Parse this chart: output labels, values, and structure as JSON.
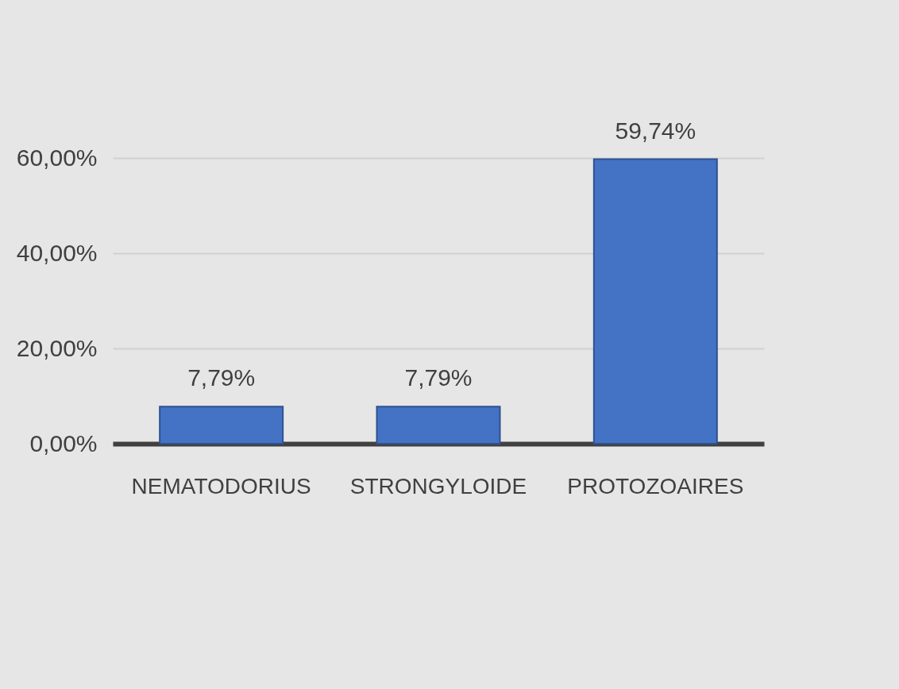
{
  "chart_data": {
    "type": "bar",
    "categories": [
      "NEMATODORIUS",
      "STRONGYLOIDE",
      "PROTOZOAIRES"
    ],
    "values": [
      7.79,
      7.79,
      59.74
    ],
    "color": "#4472c4",
    "value_labels": [
      "7,79%",
      "7,79%",
      "59,74%"
    ],
    "ylim": [
      0,
      60
    ],
    "yticks": [
      {
        "value": 0,
        "label": "0,00%"
      },
      {
        "value": 20,
        "label": "20,00%"
      },
      {
        "value": 40,
        "label": "40,00%"
      },
      {
        "value": 60,
        "label": "60,00%"
      }
    ],
    "grid": "y"
  }
}
